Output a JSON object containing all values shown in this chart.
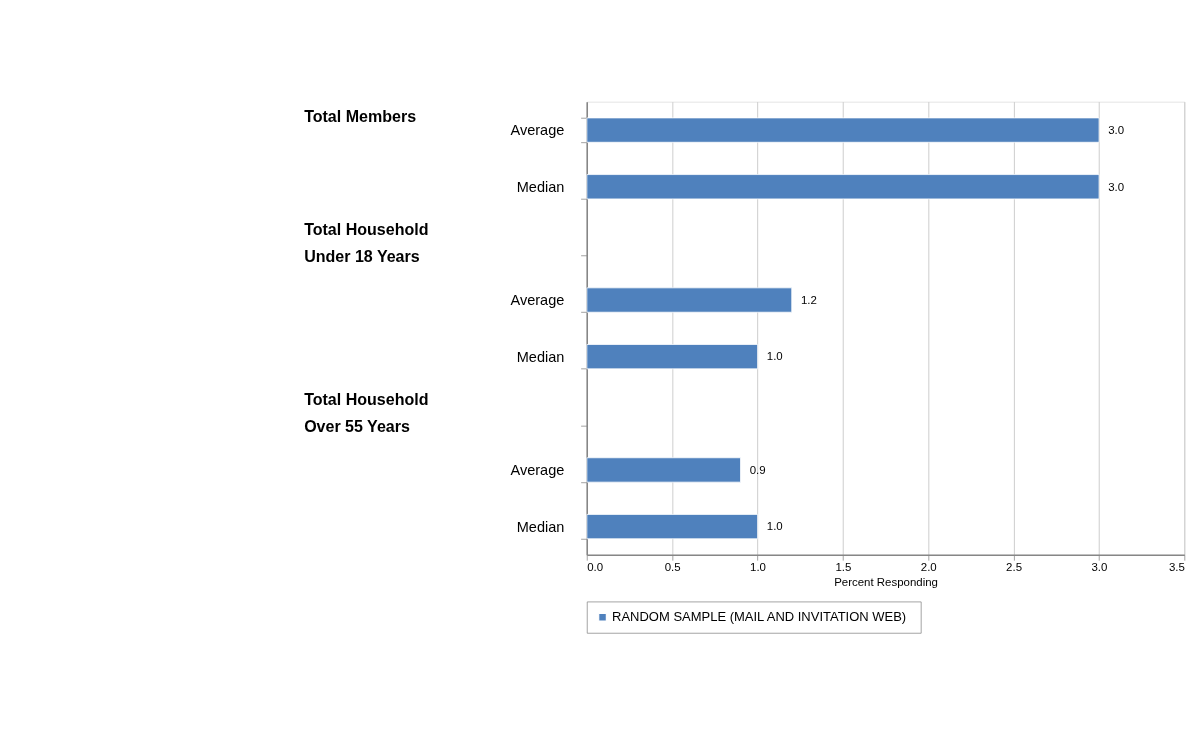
{
  "chart_data": {
    "type": "bar",
    "orientation": "horizontal",
    "xlabel": "Percent Responding",
    "categories": [
      "Average",
      "Median",
      null,
      "Average",
      "Median",
      null,
      "Average",
      "Median"
    ],
    "series": [
      {
        "name": "RANDOM SAMPLE (MAIL AND INVITATION  WEB)",
        "color": "#4f81bd",
        "values": [
          3.0,
          3.0,
          null,
          1.2,
          1.0,
          null,
          0.9,
          1.0
        ],
        "value_labels": [
          "3.0",
          "3.0",
          null,
          "1.2",
          "1.0",
          null,
          "0.9",
          "1.0"
        ]
      }
    ],
    "xlim": [
      0,
      3.5
    ],
    "xticks": [
      {
        "value": 0,
        "label": "0.0"
      },
      {
        "value": 0.5,
        "label": "0.5"
      },
      {
        "value": 1,
        "label": "1.0"
      },
      {
        "value": 1.5,
        "label": "1.5"
      },
      {
        "value": 2,
        "label": "2.0"
      },
      {
        "value": 2.5,
        "label": "2.5"
      },
      {
        "value": 3,
        "label": "3.0"
      },
      {
        "value": 3.5,
        "label": "3.5"
      }
    ],
    "annotations": [
      "Total Members",
      "Total Household\nUnder 18 Years",
      "Total Household\nOver 55 Years"
    ],
    "grid": "x",
    "legend": "bottom"
  }
}
